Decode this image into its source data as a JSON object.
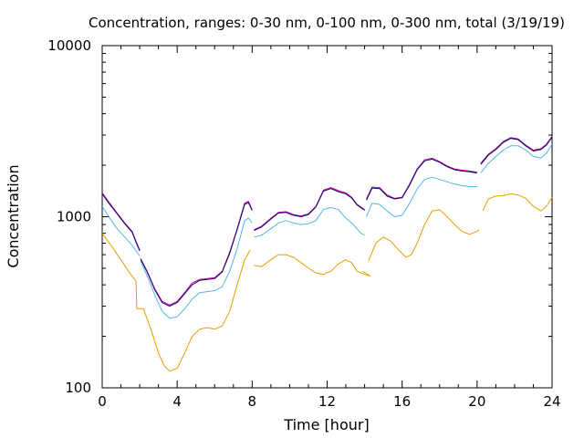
{
  "chart_data": {
    "type": "line",
    "title": "Concentration, ranges: 0-30 nm, 0-100 nm, 0-300 nm, total (3/19/19)",
    "xlabel": "Time [hour]",
    "ylabel": "Concentration",
    "xlim": [
      0,
      24
    ],
    "ylim": [
      100,
      10000
    ],
    "yscale": "log",
    "grid": false,
    "legend": "none",
    "x_ticks": [
      "0",
      "4",
      "8",
      "12",
      "16",
      "20",
      "24"
    ],
    "y_ticks": [
      "100",
      "1000",
      "10000"
    ],
    "series": [
      {
        "color": "#e69f00",
        "segments": [
          [
            [
              0,
              800
            ],
            [
              0.3,
              720
            ],
            [
              0.6,
              650
            ],
            [
              1.0,
              560
            ],
            [
              1.4,
              480
            ],
            [
              1.8,
              420
            ],
            [
              1.85,
              290
            ],
            [
              2.2,
              290
            ],
            [
              2.6,
              220
            ],
            [
              3.0,
              160
            ],
            [
              3.3,
              135
            ],
            [
              3.6,
              125
            ],
            [
              4.0,
              130
            ],
            [
              4.4,
              160
            ],
            [
              4.8,
              200
            ],
            [
              5.2,
              220
            ],
            [
              5.6,
              225
            ],
            [
              6.0,
              220
            ],
            [
              6.4,
              230
            ],
            [
              6.8,
              280
            ],
            [
              7.2,
              400
            ],
            [
              7.6,
              560
            ],
            [
              7.9,
              640
            ]
          ],
          [
            [
              8.1,
              520
            ],
            [
              8.5,
              510
            ],
            [
              9.0,
              560
            ],
            [
              9.4,
              600
            ],
            [
              9.8,
              600
            ],
            [
              10.2,
              580
            ],
            [
              10.6,
              540
            ],
            [
              11.0,
              500
            ],
            [
              11.4,
              470
            ],
            [
              11.8,
              460
            ],
            [
              12.2,
              480
            ],
            [
              12.6,
              530
            ],
            [
              13.0,
              560
            ],
            [
              13.3,
              540
            ],
            [
              13.6,
              480
            ],
            [
              14.0,
              460
            ],
            [
              14.3,
              450
            ],
            [
              13.9,
              480
            ]
          ],
          [
            [
              14.2,
              550
            ],
            [
              14.6,
              700
            ],
            [
              15.0,
              760
            ],
            [
              15.4,
              720
            ],
            [
              15.8,
              640
            ],
            [
              16.2,
              580
            ],
            [
              16.5,
              600
            ],
            [
              16.8,
              700
            ],
            [
              17.2,
              900
            ],
            [
              17.6,
              1080
            ],
            [
              18.0,
              1100
            ],
            [
              18.4,
              1000
            ],
            [
              18.8,
              900
            ],
            [
              19.2,
              820
            ],
            [
              19.6,
              790
            ],
            [
              20.0,
              820
            ],
            [
              20.1,
              840
            ]
          ],
          [
            [
              20.3,
              1080
            ],
            [
              20.6,
              1270
            ],
            [
              21.0,
              1320
            ],
            [
              21.4,
              1330
            ],
            [
              21.8,
              1360
            ],
            [
              22.2,
              1340
            ],
            [
              22.6,
              1280
            ],
            [
              23.0,
              1150
            ],
            [
              23.4,
              1080
            ],
            [
              23.7,
              1150
            ],
            [
              24.0,
              1300
            ]
          ]
        ]
      },
      {
        "color": "#56b4e9",
        "segments": [
          [
            [
              0,
              1150
            ],
            [
              0.4,
              980
            ],
            [
              0.8,
              850
            ],
            [
              1.2,
              760
            ],
            [
              1.6,
              680
            ],
            [
              2.0,
              590
            ]
          ],
          [
            [
              2.05,
              550
            ],
            [
              2.4,
              450
            ],
            [
              2.8,
              350
            ],
            [
              3.2,
              280
            ],
            [
              3.6,
              255
            ],
            [
              4.0,
              260
            ],
            [
              4.4,
              290
            ],
            [
              4.8,
              330
            ],
            [
              5.2,
              360
            ],
            [
              5.6,
              365
            ],
            [
              6.0,
              370
            ],
            [
              6.4,
              390
            ],
            [
              6.8,
              480
            ],
            [
              7.2,
              650
            ],
            [
              7.6,
              950
            ],
            [
              7.8,
              980
            ],
            [
              8.0,
              920
            ]
          ],
          [
            [
              8.1,
              760
            ],
            [
              8.5,
              780
            ],
            [
              9.0,
              850
            ],
            [
              9.4,
              920
            ],
            [
              9.8,
              950
            ],
            [
              10.2,
              920
            ],
            [
              10.6,
              900
            ],
            [
              11.0,
              910
            ],
            [
              11.4,
              950
            ],
            [
              11.8,
              1100
            ],
            [
              12.2,
              1130
            ],
            [
              12.6,
              1100
            ],
            [
              13.0,
              980
            ],
            [
              13.4,
              900
            ],
            [
              13.8,
              800
            ],
            [
              14.0,
              780
            ]
          ],
          [
            [
              14.1,
              1000
            ],
            [
              14.4,
              1200
            ],
            [
              14.8,
              1180
            ],
            [
              15.2,
              1080
            ],
            [
              15.6,
              1000
            ],
            [
              16.0,
              1020
            ],
            [
              16.4,
              1200
            ],
            [
              16.8,
              1450
            ],
            [
              17.2,
              1650
            ],
            [
              17.6,
              1700
            ],
            [
              18.0,
              1650
            ],
            [
              18.4,
              1600
            ],
            [
              18.8,
              1550
            ],
            [
              19.2,
              1520
            ],
            [
              19.6,
              1500
            ],
            [
              20.0,
              1500
            ]
          ],
          [
            [
              20.2,
              1800
            ],
            [
              20.6,
              2050
            ],
            [
              21.0,
              2250
            ],
            [
              21.4,
              2450
            ],
            [
              21.8,
              2600
            ],
            [
              22.2,
              2600
            ],
            [
              22.6,
              2450
            ],
            [
              23.0,
              2250
            ],
            [
              23.4,
              2200
            ],
            [
              23.7,
              2350
            ],
            [
              24.0,
              2650
            ]
          ]
        ]
      },
      {
        "color": "#cc0099",
        "segments": [
          [
            [
              0,
              1380
            ],
            [
              0.4,
              1200
            ],
            [
              0.8,
              1050
            ],
            [
              1.2,
              920
            ],
            [
              1.6,
              820
            ],
            [
              1.8,
              720
            ],
            [
              2.0,
              640
            ]
          ],
          [
            [
              2.05,
              570
            ],
            [
              2.4,
              480
            ],
            [
              2.8,
              380
            ],
            [
              3.2,
              320
            ],
            [
              3.6,
              305
            ],
            [
              4.0,
              320
            ],
            [
              4.4,
              360
            ],
            [
              4.8,
              410
            ],
            [
              5.2,
              430
            ],
            [
              5.6,
              435
            ],
            [
              6.0,
              440
            ],
            [
              6.4,
              480
            ],
            [
              6.8,
              620
            ],
            [
              7.2,
              850
            ],
            [
              7.6,
              1200
            ],
            [
              7.8,
              1230
            ],
            [
              8.0,
              1100
            ]
          ],
          [
            [
              8.1,
              840
            ],
            [
              8.5,
              880
            ],
            [
              9.0,
              980
            ],
            [
              9.4,
              1060
            ],
            [
              9.8,
              1070
            ],
            [
              10.2,
              1030
            ],
            [
              10.6,
              1010
            ],
            [
              11.0,
              1040
            ],
            [
              11.4,
              1150
            ],
            [
              11.8,
              1430
            ],
            [
              12.2,
              1480
            ],
            [
              12.6,
              1420
            ],
            [
              13.0,
              1380
            ],
            [
              13.3,
              1300
            ],
            [
              13.6,
              1180
            ],
            [
              14.0,
              1100
            ]
          ],
          [
            [
              14.1,
              1270
            ],
            [
              14.4,
              1490
            ],
            [
              14.8,
              1480
            ],
            [
              15.2,
              1340
            ],
            [
              15.6,
              1280
            ],
            [
              16.0,
              1300
            ],
            [
              16.4,
              1550
            ],
            [
              16.8,
              1900
            ],
            [
              17.2,
              2150
            ],
            [
              17.6,
              2200
            ],
            [
              18.0,
              2100
            ],
            [
              18.4,
              1980
            ],
            [
              18.8,
              1900
            ],
            [
              19.2,
              1870
            ],
            [
              19.6,
              1850
            ],
            [
              20.0,
              1820
            ]
          ],
          [
            [
              20.2,
              2050
            ],
            [
              20.6,
              2320
            ],
            [
              21.0,
              2500
            ],
            [
              21.4,
              2750
            ],
            [
              21.8,
              2900
            ],
            [
              22.2,
              2850
            ],
            [
              22.6,
              2620
            ],
            [
              23.0,
              2450
            ],
            [
              23.4,
              2500
            ],
            [
              23.7,
              2650
            ],
            [
              24.0,
              2950
            ]
          ]
        ]
      },
      {
        "color": "#0a0a6e",
        "segments": [
          [
            [
              0,
              1360
            ],
            [
              0.4,
              1180
            ],
            [
              0.8,
              1040
            ],
            [
              1.2,
              910
            ],
            [
              1.6,
              810
            ],
            [
              1.8,
              710
            ],
            [
              2.0,
              630
            ]
          ],
          [
            [
              2.05,
              565
            ],
            [
              2.4,
              475
            ],
            [
              2.8,
              375
            ],
            [
              3.2,
              315
            ],
            [
              3.6,
              300
            ],
            [
              4.0,
              315
            ],
            [
              4.4,
              355
            ],
            [
              4.8,
              400
            ],
            [
              5.2,
              425
            ],
            [
              5.6,
              430
            ],
            [
              6.0,
              435
            ],
            [
              6.4,
              475
            ],
            [
              6.8,
              610
            ],
            [
              7.2,
              840
            ],
            [
              7.6,
              1180
            ],
            [
              7.8,
              1210
            ],
            [
              8.0,
              1090
            ]
          ],
          [
            [
              8.1,
              830
            ],
            [
              8.5,
              870
            ],
            [
              9.0,
              970
            ],
            [
              9.4,
              1050
            ],
            [
              9.8,
              1060
            ],
            [
              10.2,
              1020
            ],
            [
              10.6,
              1000
            ],
            [
              11.0,
              1030
            ],
            [
              11.4,
              1140
            ],
            [
              11.8,
              1410
            ],
            [
              12.2,
              1460
            ],
            [
              12.6,
              1400
            ],
            [
              13.0,
              1360
            ],
            [
              13.3,
              1290
            ],
            [
              13.6,
              1170
            ],
            [
              14.0,
              1090
            ]
          ],
          [
            [
              14.1,
              1250
            ],
            [
              14.4,
              1470
            ],
            [
              14.8,
              1460
            ],
            [
              15.2,
              1320
            ],
            [
              15.6,
              1270
            ],
            [
              16.0,
              1290
            ],
            [
              16.4,
              1530
            ],
            [
              16.8,
              1880
            ],
            [
              17.2,
              2120
            ],
            [
              17.6,
              2170
            ],
            [
              18.0,
              2080
            ],
            [
              18.4,
              1960
            ],
            [
              18.8,
              1880
            ],
            [
              19.2,
              1850
            ],
            [
              19.6,
              1830
            ],
            [
              20.0,
              1800
            ]
          ],
          [
            [
              20.2,
              2020
            ],
            [
              20.6,
              2290
            ],
            [
              21.0,
              2470
            ],
            [
              21.4,
              2720
            ],
            [
              21.8,
              2870
            ],
            [
              22.2,
              2820
            ],
            [
              22.6,
              2590
            ],
            [
              23.0,
              2420
            ],
            [
              23.4,
              2470
            ],
            [
              23.7,
              2620
            ],
            [
              24.0,
              2920
            ]
          ]
        ]
      }
    ]
  }
}
